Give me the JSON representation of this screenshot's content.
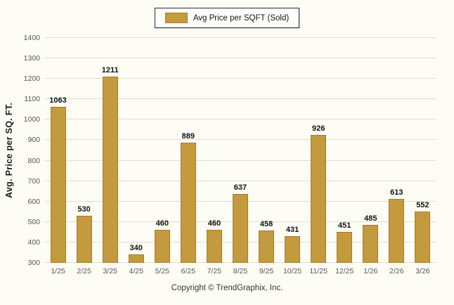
{
  "footer": {
    "copyright": "Copyright © TrendGraphix, Inc."
  },
  "chart_data": {
    "type": "bar",
    "title": "",
    "legend": "Avg Price per SQFT (Sold)",
    "legend_position": "top",
    "xlabel": "",
    "ylabel": "Avg. Price per SQ. FT.",
    "categories": [
      "1/25",
      "2/25",
      "3/25",
      "4/25",
      "5/25",
      "6/25",
      "7/25",
      "8/25",
      "9/25",
      "10/25",
      "11/25",
      "12/25",
      "1/26",
      "2/26",
      "3/26"
    ],
    "values": [
      1063,
      530,
      1211,
      340,
      460,
      889,
      460,
      637,
      458,
      431,
      926,
      451,
      485,
      613,
      552
    ],
    "ylim": [
      300,
      1400
    ],
    "ytick_step": 100,
    "grid": true,
    "bar_color": "#C49A3E",
    "bar_border_color": "#A27E2C"
  }
}
